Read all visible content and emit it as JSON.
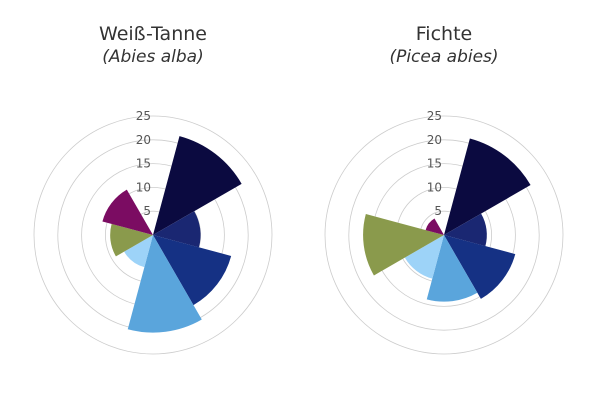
{
  "chart_data": [
    {
      "type": "polar-bar",
      "title": "Weiß-Tanne",
      "subtitle": "(Abies alba)",
      "categories": [
        null,
        null,
        null,
        null,
        null,
        null,
        null
      ],
      "values": [
        21.5,
        10,
        17,
        20.5,
        7,
        9,
        11
      ],
      "colors": [
        "#0b0a40",
        "#1a2772",
        "#153184",
        "#5aa5dc",
        "#9dd3f8",
        "#8a9a4c",
        "#7b0c62"
      ],
      "rlim": [
        0,
        25
      ],
      "rticks": [
        5,
        10,
        15,
        20,
        25
      ],
      "grid": true
    },
    {
      "type": "polar-bar",
      "title": "Fichte",
      "subtitle": "(Picea abies)",
      "categories": [
        null,
        null,
        null,
        null,
        null,
        null,
        null
      ],
      "values": [
        21,
        9,
        15.5,
        14,
        9.5,
        17,
        4
      ],
      "colors": [
        "#0b0a40",
        "#1a2772",
        "#153184",
        "#5aa5dc",
        "#9dd3f8",
        "#8a9a4c",
        "#7b0c62"
      ],
      "rlim": [
        0,
        25
      ],
      "rticks": [
        5,
        10,
        15,
        20,
        25
      ],
      "grid": true
    }
  ]
}
